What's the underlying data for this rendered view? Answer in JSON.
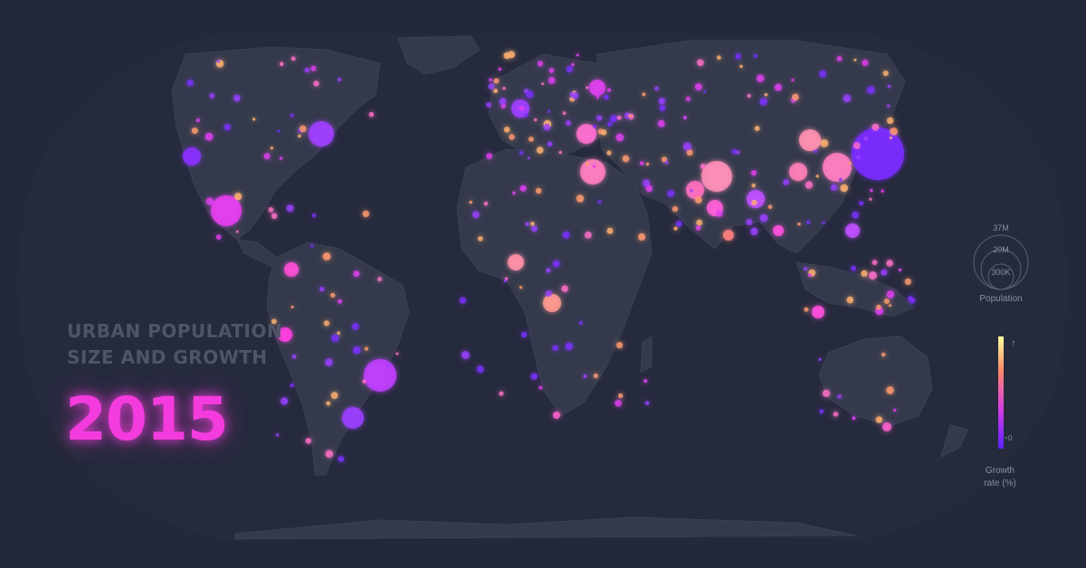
{
  "title": {
    "line1": "URBAN POPULATION",
    "line2": "SIZE AND GROWTH"
  },
  "year": "2015",
  "legend": {
    "size": {
      "label": "Population",
      "values": [
        "37M",
        "20M",
        "300K"
      ]
    },
    "growth": {
      "label_line1": "Growth",
      "label_line2": "rate (%)",
      "zero_label": "0",
      "arrow": "↑"
    }
  },
  "colors": {
    "background": "#232938",
    "ocean": "#262a3d",
    "land": "#343a4b",
    "low_growth": "#7a2cff",
    "mid_growth": "#f038e0",
    "high_growth": "#ff9a70",
    "year_text": "#f43cde"
  }
}
